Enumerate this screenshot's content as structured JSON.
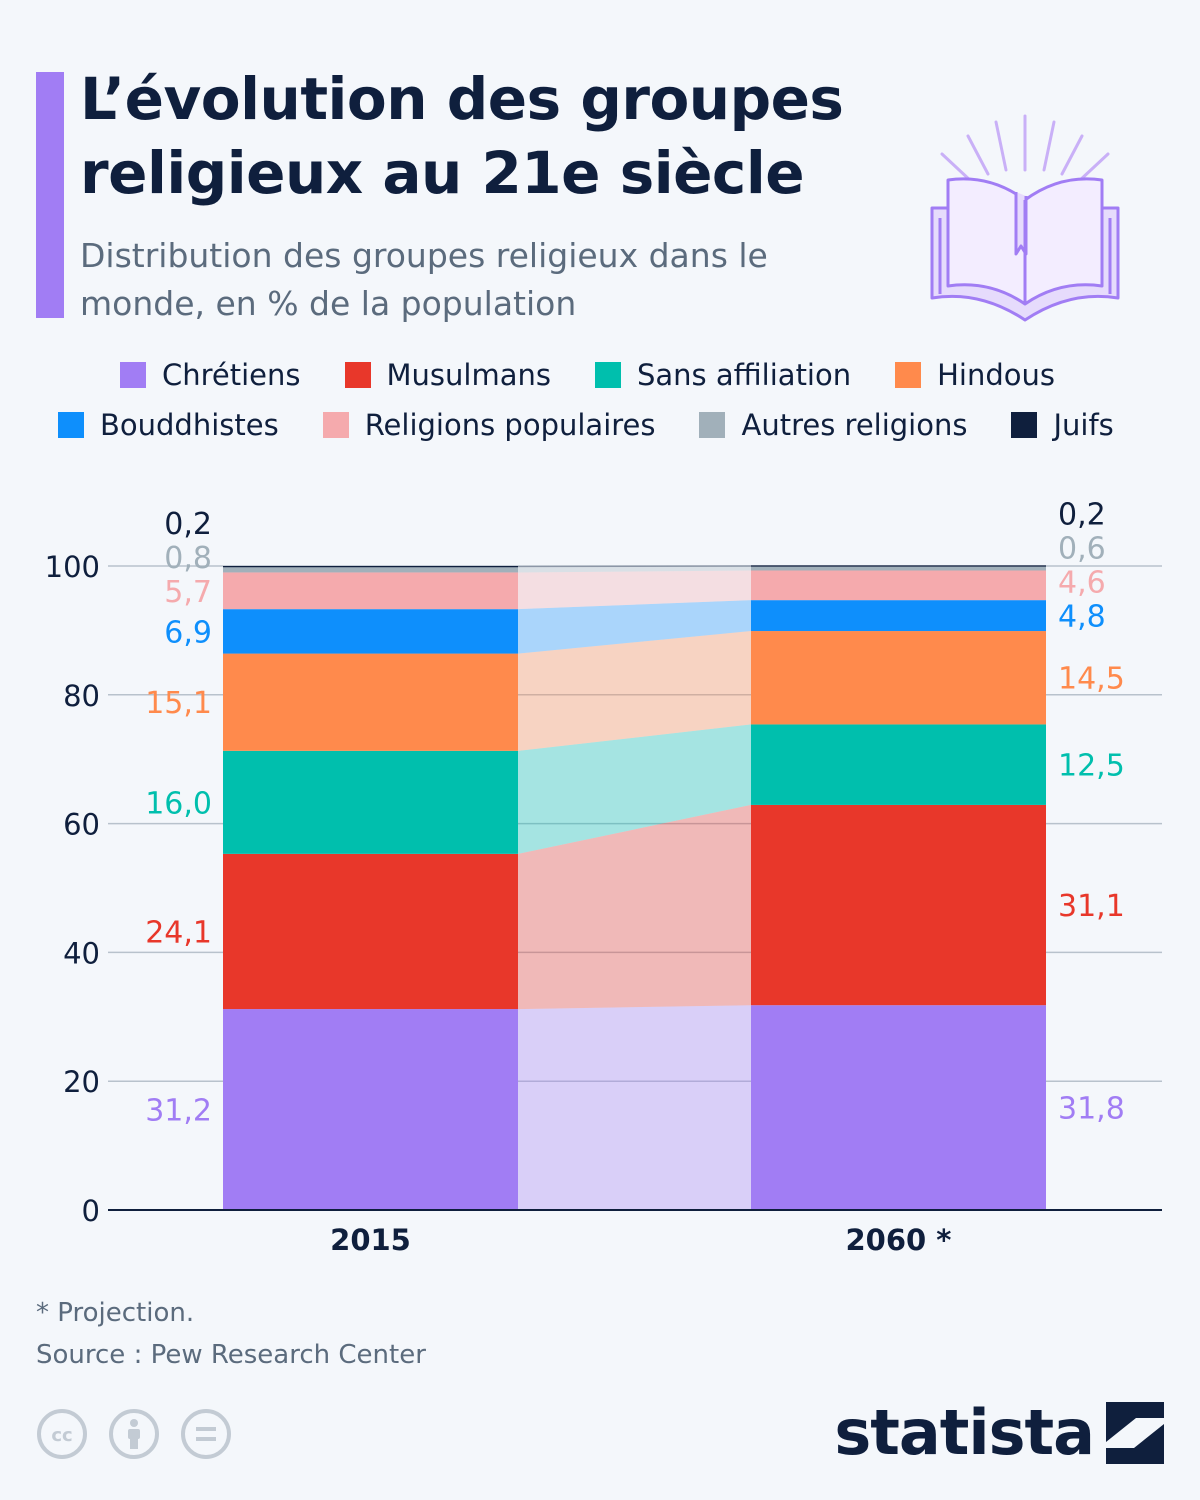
{
  "header": {
    "title": "L’évolution des groupes religieux au 21e siècle",
    "subtitle": "Distribution des groupes religieux dans le monde, en % de la population"
  },
  "colors": {
    "accent": "#a17df4",
    "dark": "#0f1f3d",
    "muted": "#5b6b7d"
  },
  "legend": {
    "row1": [
      {
        "label": "Chrétiens",
        "color": "#a17df4"
      },
      {
        "label": "Musulmans",
        "color": "#e8372a"
      },
      {
        "label": "Sans affiliation",
        "color": "#00bfad"
      },
      {
        "label": "Hindous",
        "color": "#ff8a4c"
      }
    ],
    "row2": [
      {
        "label": "Bouddhistes",
        "color": "#0e8ffc"
      },
      {
        "label": "Religions populaires",
        "color": "#f5aaad"
      },
      {
        "label": "Autres religions",
        "color": "#a1b0ba"
      },
      {
        "label": "Juifs",
        "color": "#0f1f3d"
      }
    ]
  },
  "chart_data": {
    "type": "bar",
    "stacked": true,
    "categories": [
      "2015",
      "2060 *"
    ],
    "ylim": [
      0,
      100
    ],
    "yticks": [
      0,
      20,
      40,
      60,
      80,
      100
    ],
    "grid": true,
    "legend_position": "top",
    "series": [
      {
        "name": "Chrétiens",
        "color": "#a17df4",
        "values": [
          31.2,
          31.8
        ],
        "labels": [
          "31,2",
          "31,8"
        ]
      },
      {
        "name": "Musulmans",
        "color": "#e8372a",
        "values": [
          24.1,
          31.1
        ],
        "labels": [
          "24,1",
          "31,1"
        ]
      },
      {
        "name": "Sans affiliation",
        "color": "#00bfad",
        "values": [
          16.0,
          12.5
        ],
        "labels": [
          "16,0",
          "12,5"
        ]
      },
      {
        "name": "Hindous",
        "color": "#ff8a4c",
        "values": [
          15.1,
          14.5
        ],
        "labels": [
          "15,1",
          "14,5"
        ]
      },
      {
        "name": "Bouddhistes",
        "color": "#0e8ffc",
        "values": [
          6.9,
          4.8
        ],
        "labels": [
          "6,9",
          "4,8"
        ]
      },
      {
        "name": "Religions populaires",
        "color": "#f5aaad",
        "values": [
          5.7,
          4.6
        ],
        "labels": [
          "5,7",
          "4,6"
        ]
      },
      {
        "name": "Autres religions",
        "color": "#a1b0ba",
        "values": [
          0.8,
          0.6
        ],
        "labels": [
          "0,8",
          "0,6"
        ]
      },
      {
        "name": "Juifs",
        "color": "#0f1f3d",
        "values": [
          0.2,
          0.2
        ],
        "labels": [
          "0,2",
          "0,2"
        ]
      }
    ]
  },
  "footer": {
    "note": "* Projection.",
    "source": "Source : Pew Research Center",
    "brand": "statista",
    "license_icons": [
      "cc-icon",
      "attribution-icon",
      "no-derivatives-icon"
    ]
  }
}
